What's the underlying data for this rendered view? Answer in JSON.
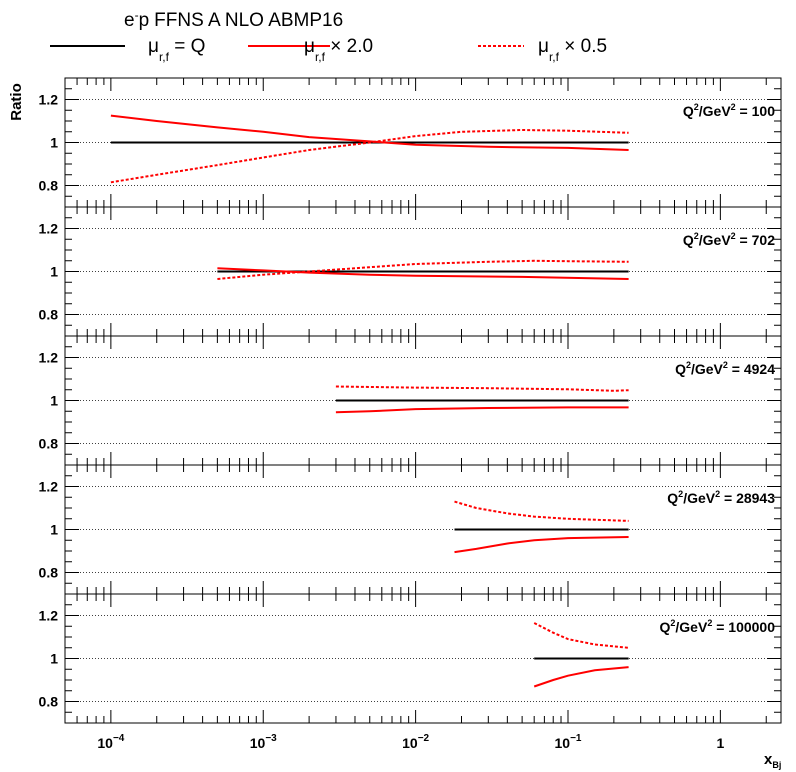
{
  "chart_data": {
    "type": "line",
    "title": "FFNS A NLO ABMP16",
    "title_prefix": "e",
    "title_sup": "-",
    "title_mid": "p",
    "ylabel": "Ratio",
    "xlabel": "x",
    "xlabel_sub": "Bj",
    "x_scale": "log",
    "xlim": [
      5e-05,
      2.5
    ],
    "ylim": [
      0.7,
      1.3
    ],
    "x_ticks": [
      {
        "value": 0.0001,
        "base": "10",
        "exp": "−4"
      },
      {
        "value": 0.001,
        "base": "10",
        "exp": "−3"
      },
      {
        "value": 0.01,
        "base": "10",
        "exp": "−2"
      },
      {
        "value": 0.1,
        "base": "10",
        "exp": "−1"
      },
      {
        "value": 1,
        "base": "1",
        "exp": ""
      }
    ],
    "y_ticks": [
      {
        "value": 0.8,
        "label": "0.8"
      },
      {
        "value": 1.0,
        "label": "1"
      },
      {
        "value": 1.2,
        "label": "1.2"
      }
    ],
    "grid": "horizontal dotted",
    "legend": [
      {
        "key": "nominal",
        "symbol": "μ",
        "sub": "r,f",
        "text": " = Q",
        "color": "#000000",
        "dash": "solid"
      },
      {
        "key": "up",
        "symbol": "μ",
        "sub": "r,f",
        "text": " × 2.0",
        "color": "#ff0000",
        "dash": "solid"
      },
      {
        "key": "down",
        "symbol": "μ",
        "sub": "r,f",
        "text": " × 0.5",
        "color": "#ff0000",
        "dash": "dotted"
      }
    ],
    "panels": [
      {
        "q2_prefix": "Q",
        "q2_mid": "/GeV",
        "q2_value": " = 100",
        "series": {
          "nominal": [
            [
              0.0001,
              1.0
            ],
            [
              0.25,
              1.0
            ]
          ],
          "up": [
            [
              0.0001,
              1.125
            ],
            [
              0.0002,
              1.1
            ],
            [
              0.0005,
              1.07
            ],
            [
              0.001,
              1.05
            ],
            [
              0.002,
              1.025
            ],
            [
              0.005,
              1.005
            ],
            [
              0.01,
              0.99
            ],
            [
              0.03,
              0.98
            ],
            [
              0.1,
              0.975
            ],
            [
              0.25,
              0.965
            ]
          ],
          "down": [
            [
              0.0001,
              0.815
            ],
            [
              0.0002,
              0.85
            ],
            [
              0.0005,
              0.895
            ],
            [
              0.001,
              0.93
            ],
            [
              0.002,
              0.965
            ],
            [
              0.005,
              1.0
            ],
            [
              0.01,
              1.03
            ],
            [
              0.02,
              1.05
            ],
            [
              0.05,
              1.058
            ],
            [
              0.1,
              1.055
            ],
            [
              0.25,
              1.045
            ]
          ]
        }
      },
      {
        "q2_prefix": "Q",
        "q2_mid": "/GeV",
        "q2_value": " = 702",
        "series": {
          "nominal": [
            [
              0.0005,
              1.0
            ],
            [
              0.25,
              1.0
            ]
          ],
          "up": [
            [
              0.0005,
              1.015
            ],
            [
              0.001,
              1.005
            ],
            [
              0.002,
              0.995
            ],
            [
              0.005,
              0.985
            ],
            [
              0.01,
              0.98
            ],
            [
              0.05,
              0.975
            ],
            [
              0.25,
              0.965
            ]
          ],
          "down": [
            [
              0.0005,
              0.965
            ],
            [
              0.001,
              0.985
            ],
            [
              0.002,
              1.0
            ],
            [
              0.005,
              1.02
            ],
            [
              0.01,
              1.035
            ],
            [
              0.03,
              1.045
            ],
            [
              0.06,
              1.05
            ],
            [
              0.1,
              1.048
            ],
            [
              0.25,
              1.045
            ]
          ]
        }
      },
      {
        "q2_prefix": "Q",
        "q2_mid": "/GeV",
        "q2_value": " = 4924",
        "series": {
          "nominal": [
            [
              0.003,
              1.0
            ],
            [
              0.25,
              1.0
            ]
          ],
          "up": [
            [
              0.003,
              0.945
            ],
            [
              0.005,
              0.95
            ],
            [
              0.01,
              0.96
            ],
            [
              0.03,
              0.965
            ],
            [
              0.1,
              0.968
            ],
            [
              0.25,
              0.968
            ]
          ],
          "down": [
            [
              0.003,
              1.065
            ],
            [
              0.01,
              1.06
            ],
            [
              0.03,
              1.057
            ],
            [
              0.1,
              1.052
            ],
            [
              0.2,
              1.045
            ],
            [
              0.25,
              1.048
            ]
          ]
        }
      },
      {
        "q2_prefix": "Q",
        "q2_mid": "/GeV",
        "q2_value": " = 28943",
        "series": {
          "nominal": [
            [
              0.018,
              1.0
            ],
            [
              0.25,
              1.0
            ]
          ],
          "up": [
            [
              0.018,
              0.895
            ],
            [
              0.025,
              0.91
            ],
            [
              0.04,
              0.935
            ],
            [
              0.06,
              0.95
            ],
            [
              0.1,
              0.96
            ],
            [
              0.25,
              0.965
            ]
          ],
          "down": [
            [
              0.018,
              1.13
            ],
            [
              0.025,
              1.1
            ],
            [
              0.04,
              1.075
            ],
            [
              0.06,
              1.06
            ],
            [
              0.1,
              1.05
            ],
            [
              0.25,
              1.04
            ]
          ]
        }
      },
      {
        "q2_prefix": "Q",
        "q2_mid": "/GeV",
        "q2_value": " = 100000",
        "series": {
          "nominal": [
            [
              0.06,
              1.0
            ],
            [
              0.25,
              1.0
            ]
          ],
          "up": [
            [
              0.06,
              0.87
            ],
            [
              0.08,
              0.9
            ],
            [
              0.1,
              0.92
            ],
            [
              0.15,
              0.945
            ],
            [
              0.25,
              0.96
            ]
          ],
          "down": [
            [
              0.06,
              1.165
            ],
            [
              0.08,
              1.12
            ],
            [
              0.1,
              1.09
            ],
            [
              0.15,
              1.065
            ],
            [
              0.25,
              1.05
            ]
          ]
        }
      }
    ]
  }
}
